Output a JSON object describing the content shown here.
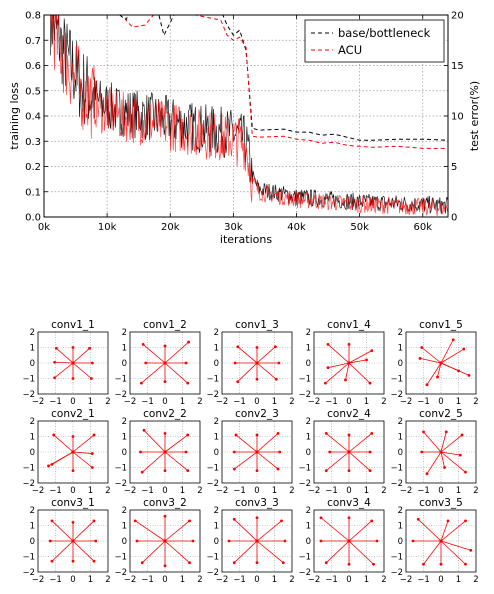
{
  "chart_data": [
    {
      "type": "line",
      "xlabel": "iterations",
      "ylabel": "training loss",
      "y2label": "test error(%)",
      "xlim": [
        0,
        64000
      ],
      "ylim": [
        0,
        0.8
      ],
      "y2lim": [
        0,
        20
      ],
      "xticks": [
        0,
        10000,
        20000,
        30000,
        40000,
        50000,
        60000
      ],
      "xtick_labels": [
        "0k",
        "10k",
        "20k",
        "30k",
        "40k",
        "50k",
        "60k"
      ],
      "yticks": [
        0.0,
        0.1,
        0.2,
        0.3,
        0.4,
        0.5,
        0.6,
        0.7,
        0.8
      ],
      "ytick_labels": [
        "0.0",
        "0.1",
        "0.2",
        "0.3",
        "0.4",
        "0.5",
        "0.6",
        "0.7",
        "0.8"
      ],
      "y2ticks": [
        0,
        5,
        10,
        15,
        20
      ],
      "y2tick_labels": [
        "0",
        "5",
        "10",
        "15",
        "20"
      ],
      "grid": true,
      "legend_position": "top-right",
      "series": [
        {
          "name": "base/bottleneck",
          "color": "#000000",
          "loss_curve": [
            [
              1000,
              0.8
            ],
            [
              3000,
              0.66
            ],
            [
              6000,
              0.52
            ],
            [
              9000,
              0.45
            ],
            [
              12000,
              0.42
            ],
            [
              16000,
              0.4
            ],
            [
              20000,
              0.38
            ],
            [
              25000,
              0.35
            ],
            [
              30000,
              0.33
            ],
            [
              32000,
              0.3
            ],
            [
              33000,
              0.16
            ],
            [
              34000,
              0.11
            ],
            [
              36000,
              0.1
            ],
            [
              40000,
              0.08
            ],
            [
              45000,
              0.07
            ],
            [
              50000,
              0.06
            ],
            [
              55000,
              0.055
            ],
            [
              60000,
              0.05
            ],
            [
              64000,
              0.045
            ]
          ],
          "error_curve": [
            [
              12000,
              20.0
            ],
            [
              13000,
              19.5
            ],
            [
              14000,
              21.0
            ],
            [
              18000,
              20.5
            ],
            [
              19000,
              18.0
            ],
            [
              21000,
              20.5
            ],
            [
              24000,
              21.0
            ],
            [
              28000,
              20.5
            ],
            [
              29000,
              19.0
            ],
            [
              30000,
              18.0
            ],
            [
              31000,
              18.5
            ],
            [
              32000,
              16.5
            ],
            [
              33000,
              8.8
            ],
            [
              34000,
              8.6
            ],
            [
              38000,
              8.7
            ],
            [
              40000,
              8.4
            ],
            [
              42000,
              8.4
            ],
            [
              44000,
              8.1
            ],
            [
              46000,
              8.2
            ],
            [
              48000,
              7.9
            ],
            [
              50000,
              7.6
            ],
            [
              52000,
              7.6
            ],
            [
              56000,
              7.7
            ],
            [
              60000,
              7.7
            ],
            [
              64000,
              7.6
            ]
          ]
        },
        {
          "name": "ACU",
          "color": "#ff0000",
          "loss_curve": [
            [
              1000,
              0.78
            ],
            [
              3000,
              0.64
            ],
            [
              6000,
              0.5
            ],
            [
              9000,
              0.43
            ],
            [
              12000,
              0.4
            ],
            [
              16000,
              0.38
            ],
            [
              20000,
              0.36
            ],
            [
              25000,
              0.33
            ],
            [
              30000,
              0.31
            ],
            [
              32000,
              0.28
            ],
            [
              33000,
              0.14
            ],
            [
              34000,
              0.1
            ],
            [
              36000,
              0.09
            ],
            [
              40000,
              0.07
            ],
            [
              45000,
              0.06
            ],
            [
              50000,
              0.05
            ],
            [
              55000,
              0.045
            ],
            [
              60000,
              0.04
            ],
            [
              64000,
              0.035
            ]
          ],
          "error_curve": [
            [
              12000,
              21.0
            ],
            [
              13000,
              19.5
            ],
            [
              14000,
              18.8
            ],
            [
              16000,
              19.0
            ],
            [
              18000,
              20.5
            ],
            [
              19000,
              21.0
            ],
            [
              20000,
              21.0
            ],
            [
              24000,
              20.0
            ],
            [
              28000,
              19.5
            ],
            [
              29000,
              18.0
            ],
            [
              30000,
              17.5
            ],
            [
              31000,
              17.8
            ],
            [
              32000,
              16.8
            ],
            [
              33000,
              8.0
            ],
            [
              34000,
              7.9
            ],
            [
              38000,
              8.0
            ],
            [
              40000,
              7.7
            ],
            [
              42000,
              7.6
            ],
            [
              44000,
              7.3
            ],
            [
              46000,
              7.4
            ],
            [
              48000,
              7.1
            ],
            [
              50000,
              7.0
            ],
            [
              52000,
              6.9
            ],
            [
              56000,
              7.0
            ],
            [
              60000,
              6.8
            ],
            [
              64000,
              6.8
            ]
          ]
        }
      ]
    },
    {
      "type": "scatter",
      "xlim": [
        -2,
        2
      ],
      "ylim": [
        -2,
        2
      ],
      "ticks": [
        -2,
        -1,
        0,
        1,
        2
      ],
      "tick_labels": [
        "−2",
        "−1",
        "0",
        "1",
        "2"
      ],
      "color": "#ff0000",
      "panels": [
        {
          "title": "conv1_1",
          "points": [
            [
              -0.95,
              0.95
            ],
            [
              0,
              1
            ],
            [
              0.95,
              0.95
            ],
            [
              -1.05,
              0.05
            ],
            [
              1.1,
              0
            ],
            [
              -1.05,
              -0.95
            ],
            [
              0,
              -1
            ],
            [
              1.05,
              -1.0
            ]
          ]
        },
        {
          "title": "conv1_2",
          "points": [
            [
              -1.25,
              1.2
            ],
            [
              0,
              1.1
            ],
            [
              1.35,
              1.35
            ],
            [
              -1.1,
              0
            ],
            [
              1.2,
              0
            ],
            [
              -1.35,
              -1.3
            ],
            [
              0,
              -1.2
            ],
            [
              1.3,
              -1.3
            ]
          ]
        },
        {
          "title": "conv1_3",
          "points": [
            [
              -1.1,
              1.05
            ],
            [
              0,
              1.0
            ],
            [
              1.05,
              1.05
            ],
            [
              -1.25,
              0
            ],
            [
              1.25,
              0
            ],
            [
              -1.1,
              -1.2
            ],
            [
              0,
              -1.05
            ],
            [
              1.1,
              -1.05
            ]
          ]
        },
        {
          "title": "conv1_4",
          "points": [
            [
              -1.2,
              1.2
            ],
            [
              0,
              1.2
            ],
            [
              1.3,
              0.8
            ],
            [
              -1.2,
              -0.3
            ],
            [
              1.0,
              0.2
            ],
            [
              -1.35,
              -1.3
            ],
            [
              -0.2,
              -1.1
            ],
            [
              1.2,
              -1.3
            ]
          ]
        },
        {
          "title": "conv1_5",
          "points": [
            [
              -1.1,
              1.0
            ],
            [
              0.7,
              1.5
            ],
            [
              1.3,
              0.9
            ],
            [
              -1.2,
              0.3
            ],
            [
              1.0,
              -0.5
            ],
            [
              -0.8,
              -1.4
            ],
            [
              -0.2,
              -0.9
            ],
            [
              1.6,
              -0.8
            ]
          ]
        },
        {
          "title": "conv2_1",
          "points": [
            [
              -1.1,
              1.1
            ],
            [
              0,
              1.0
            ],
            [
              1.2,
              1.1
            ],
            [
              -1.4,
              -0.9
            ],
            [
              1.1,
              -0.1
            ],
            [
              -1.2,
              -0.8
            ],
            [
              0,
              -1.2
            ],
            [
              1.1,
              -1.0
            ]
          ]
        },
        {
          "title": "conv2_2",
          "points": [
            [
              -1.2,
              1.4
            ],
            [
              0,
              1.2
            ],
            [
              1.3,
              1.1
            ],
            [
              -1.4,
              0
            ],
            [
              1.2,
              0
            ],
            [
              -1.3,
              -1.3
            ],
            [
              0,
              -1.2
            ],
            [
              1.3,
              -1.2
            ]
          ]
        },
        {
          "title": "conv2_3",
          "points": [
            [
              -1.2,
              1.1
            ],
            [
              0,
              1.1
            ],
            [
              1.2,
              1.2
            ],
            [
              -1.3,
              0
            ],
            [
              1.3,
              0
            ],
            [
              -1.3,
              -1.1
            ],
            [
              0,
              -1.2
            ],
            [
              1.2,
              -1.1
            ]
          ]
        },
        {
          "title": "conv2_4",
          "points": [
            [
              -1.3,
              1.2
            ],
            [
              0,
              1.1
            ],
            [
              1.3,
              1.2
            ],
            [
              -1.1,
              0
            ],
            [
              1.2,
              0
            ],
            [
              -1.3,
              -1.2
            ],
            [
              0,
              -1.2
            ],
            [
              1.2,
              -1.2
            ]
          ]
        },
        {
          "title": "conv2_5",
          "points": [
            [
              -1.0,
              1.3
            ],
            [
              0.3,
              1.3
            ],
            [
              1.2,
              1.1
            ],
            [
              -1.1,
              0
            ],
            [
              1.1,
              -0.2
            ],
            [
              -0.8,
              -1.4
            ],
            [
              0.2,
              -1.0
            ],
            [
              1.4,
              -1.3
            ]
          ]
        },
        {
          "title": "conv3_1",
          "points": [
            [
              -1.2,
              1.3
            ],
            [
              0,
              1.2
            ],
            [
              1.2,
              1.3
            ],
            [
              -1.3,
              0
            ],
            [
              1.3,
              0
            ],
            [
              -1.2,
              -1.3
            ],
            [
              0,
              -1.3
            ],
            [
              1.2,
              -1.3
            ]
          ]
        },
        {
          "title": "conv3_2",
          "points": [
            [
              -1.7,
              1.3
            ],
            [
              0,
              1.6
            ],
            [
              1.4,
              1.3
            ],
            [
              -1.6,
              0
            ],
            [
              1.6,
              0
            ],
            [
              -1.3,
              -1.4
            ],
            [
              0,
              -1.6
            ],
            [
              1.4,
              -1.4
            ]
          ]
        },
        {
          "title": "conv3_3",
          "points": [
            [
              -1.3,
              1.4
            ],
            [
              0,
              1.5
            ],
            [
              1.4,
              1.3
            ],
            [
              -1.6,
              0
            ],
            [
              1.6,
              0
            ],
            [
              -1.3,
              -1.4
            ],
            [
              0,
              -1.4
            ],
            [
              1.5,
              -1.4
            ]
          ]
        },
        {
          "title": "conv3_4",
          "points": [
            [
              -1.6,
              1.5
            ],
            [
              0,
              1.5
            ],
            [
              1.3,
              1.3
            ],
            [
              -1.6,
              0
            ],
            [
              1.6,
              0
            ],
            [
              -1.3,
              -1.4
            ],
            [
              0,
              -1.5
            ],
            [
              1.4,
              -1.5
            ]
          ]
        },
        {
          "title": "conv3_5",
          "points": [
            [
              -1.3,
              1.4
            ],
            [
              0.4,
              1.3
            ],
            [
              1.4,
              1.3
            ],
            [
              -1.6,
              0
            ],
            [
              1.7,
              -0.6
            ],
            [
              -1.0,
              -1.5
            ],
            [
              0,
              -1.5
            ],
            [
              1.4,
              -1.5
            ]
          ]
        }
      ]
    }
  ]
}
